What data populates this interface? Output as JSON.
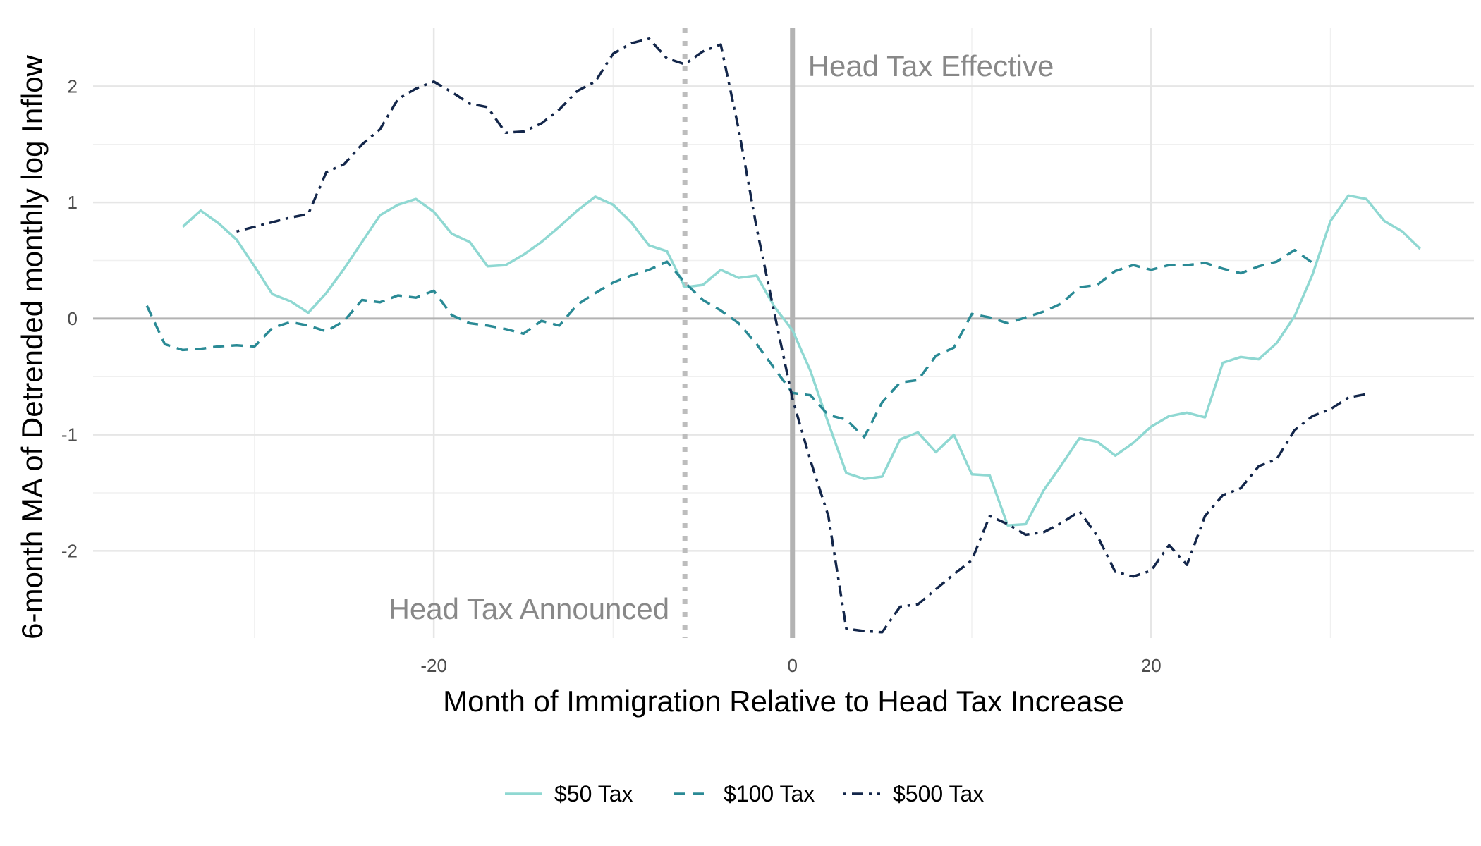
{
  "chart_data": {
    "type": "line",
    "title": "",
    "xlabel": "Month of Immigration Relative to Head Tax Increase",
    "ylabel": "6-month MA of Detrended monthly log Inflow",
    "xlim": [
      -39,
      38
    ],
    "ylim": [
      -2.75,
      2.5
    ],
    "x_ticks": [
      -20,
      0,
      20
    ],
    "x_tick_labels": [
      "-20",
      "0",
      "20"
    ],
    "y_ticks": [
      -2,
      -1,
      0,
      1,
      2
    ],
    "y_tick_labels": [
      "-2",
      "-1",
      "0",
      "1",
      "2"
    ],
    "grid": true,
    "legend_position": "bottom",
    "reference_lines": [
      {
        "x": -6,
        "style": "dotted",
        "label": "Head Tax Announced"
      },
      {
        "x": 0,
        "style": "solid",
        "label": "Head Tax Effective"
      }
    ],
    "hline": {
      "y": 0,
      "style": "solid"
    },
    "series": [
      {
        "name": "$50 Tax",
        "color": "#8fd8d2",
        "dash": "solid",
        "points": [
          [
            -34,
            0.79
          ],
          [
            -33,
            0.93
          ],
          [
            -32,
            0.82
          ],
          [
            -31,
            0.68
          ],
          [
            -30,
            0.45
          ],
          [
            -29,
            0.21
          ],
          [
            -28,
            0.15
          ],
          [
            -27,
            0.05
          ],
          [
            -26,
            0.22
          ],
          [
            -25,
            0.43
          ],
          [
            -24,
            0.66
          ],
          [
            -23,
            0.89
          ],
          [
            -22,
            0.98
          ],
          [
            -21,
            1.03
          ],
          [
            -20,
            0.92
          ],
          [
            -19,
            0.73
          ],
          [
            -18,
            0.66
          ],
          [
            -17,
            0.45
          ],
          [
            -16,
            0.46
          ],
          [
            -15,
            0.55
          ],
          [
            -14,
            0.66
          ],
          [
            -13,
            0.79
          ],
          [
            -12,
            0.93
          ],
          [
            -11,
            1.05
          ],
          [
            -10,
            0.98
          ],
          [
            -9,
            0.83
          ],
          [
            -8,
            0.63
          ],
          [
            -7,
            0.58
          ],
          [
            -6,
            0.27
          ],
          [
            -5,
            0.29
          ],
          [
            -4,
            0.42
          ],
          [
            -3,
            0.35
          ],
          [
            -2,
            0.37
          ],
          [
            -1,
            0.1
          ],
          [
            0,
            -0.1
          ],
          [
            1,
            -0.45
          ],
          [
            2,
            -0.9
          ],
          [
            3,
            -1.33
          ],
          [
            4,
            -1.38
          ],
          [
            5,
            -1.36
          ],
          [
            6,
            -1.04
          ],
          [
            7,
            -0.98
          ],
          [
            8,
            -1.15
          ],
          [
            9,
            -1.0
          ],
          [
            10,
            -1.34
          ],
          [
            11,
            -1.35
          ],
          [
            12,
            -1.78
          ],
          [
            13,
            -1.77
          ],
          [
            14,
            -1.48
          ],
          [
            15,
            -1.26
          ],
          [
            16,
            -1.03
          ],
          [
            17,
            -1.06
          ],
          [
            18,
            -1.18
          ],
          [
            19,
            -1.07
          ],
          [
            20,
            -0.93
          ],
          [
            21,
            -0.84
          ],
          [
            22,
            -0.81
          ],
          [
            23,
            -0.85
          ],
          [
            24,
            -0.38
          ],
          [
            25,
            -0.33
          ],
          [
            26,
            -0.35
          ],
          [
            27,
            -0.21
          ],
          [
            28,
            0.02
          ],
          [
            29,
            0.38
          ],
          [
            30,
            0.84
          ],
          [
            31,
            1.06
          ],
          [
            32,
            1.03
          ],
          [
            33,
            0.84
          ],
          [
            34,
            0.75
          ],
          [
            35,
            0.6
          ]
        ]
      },
      {
        "name": "$100 Tax",
        "color": "#2a8a95",
        "dash": "dashed",
        "points": [
          [
            -36,
            0.11
          ],
          [
            -35,
            -0.22
          ],
          [
            -34,
            -0.27
          ],
          [
            -33,
            -0.26
          ],
          [
            -32,
            -0.24
          ],
          [
            -31,
            -0.23
          ],
          [
            -30,
            -0.24
          ],
          [
            -29,
            -0.08
          ],
          [
            -28,
            -0.03
          ],
          [
            -27,
            -0.06
          ],
          [
            -26,
            -0.11
          ],
          [
            -25,
            -0.02
          ],
          [
            -24,
            0.16
          ],
          [
            -23,
            0.14
          ],
          [
            -22,
            0.2
          ],
          [
            -21,
            0.18
          ],
          [
            -20,
            0.24
          ],
          [
            -19,
            0.03
          ],
          [
            -18,
            -0.04
          ],
          [
            -17,
            -0.06
          ],
          [
            -16,
            -0.09
          ],
          [
            -15,
            -0.13
          ],
          [
            -14,
            -0.02
          ],
          [
            -13,
            -0.06
          ],
          [
            -12,
            0.12
          ],
          [
            -11,
            0.22
          ],
          [
            -10,
            0.31
          ],
          [
            -9,
            0.37
          ],
          [
            -8,
            0.42
          ],
          [
            -7,
            0.49
          ],
          [
            -6,
            0.31
          ],
          [
            -5,
            0.16
          ],
          [
            -4,
            0.07
          ],
          [
            -3,
            -0.04
          ],
          [
            -2,
            -0.22
          ],
          [
            -1,
            -0.43
          ],
          [
            0,
            -0.64
          ],
          [
            1,
            -0.66
          ],
          [
            2,
            -0.83
          ],
          [
            3,
            -0.87
          ],
          [
            4,
            -1.02
          ],
          [
            5,
            -0.72
          ],
          [
            6,
            -0.55
          ],
          [
            7,
            -0.53
          ],
          [
            8,
            -0.32
          ],
          [
            9,
            -0.25
          ],
          [
            10,
            0.04
          ],
          [
            11,
            0.01
          ],
          [
            12,
            -0.04
          ],
          [
            13,
            0.01
          ],
          [
            14,
            0.06
          ],
          [
            15,
            0.13
          ],
          [
            16,
            0.27
          ],
          [
            17,
            0.29
          ],
          [
            18,
            0.41
          ],
          [
            19,
            0.46
          ],
          [
            20,
            0.42
          ],
          [
            21,
            0.46
          ],
          [
            22,
            0.46
          ],
          [
            23,
            0.48
          ],
          [
            24,
            0.43
          ],
          [
            25,
            0.39
          ],
          [
            26,
            0.45
          ],
          [
            27,
            0.49
          ],
          [
            28,
            0.59
          ],
          [
            29,
            0.48
          ]
        ]
      },
      {
        "name": "$500 Tax",
        "color": "#13264a",
        "dash": "dashdot",
        "points": [
          [
            -31,
            0.75
          ],
          [
            -30,
            0.79
          ],
          [
            -29,
            0.83
          ],
          [
            -28,
            0.87
          ],
          [
            -27,
            0.9
          ],
          [
            -26,
            1.26
          ],
          [
            -25,
            1.33
          ],
          [
            -24,
            1.5
          ],
          [
            -23,
            1.63
          ],
          [
            -22,
            1.89
          ],
          [
            -21,
            1.98
          ],
          [
            -20,
            2.04
          ],
          [
            -19,
            1.95
          ],
          [
            -18,
            1.85
          ],
          [
            -17,
            1.82
          ],
          [
            -16,
            1.6
          ],
          [
            -15,
            1.61
          ],
          [
            -14,
            1.68
          ],
          [
            -13,
            1.8
          ],
          [
            -12,
            1.96
          ],
          [
            -11,
            2.04
          ],
          [
            -10,
            2.28
          ],
          [
            -9,
            2.37
          ],
          [
            -8,
            2.41
          ],
          [
            -7,
            2.24
          ],
          [
            -6,
            2.19
          ],
          [
            -5,
            2.3
          ],
          [
            -4,
            2.36
          ],
          [
            -3,
            1.63
          ],
          [
            -2,
            0.78
          ],
          [
            -1,
            0.04
          ],
          [
            0,
            -0.69
          ],
          [
            1,
            -1.22
          ],
          [
            2,
            -1.7
          ],
          [
            3,
            -2.67
          ],
          [
            4,
            -2.69
          ],
          [
            5,
            -2.7
          ],
          [
            6,
            -2.48
          ],
          [
            7,
            -2.46
          ],
          [
            8,
            -2.33
          ],
          [
            9,
            -2.2
          ],
          [
            10,
            -2.08
          ],
          [
            11,
            -1.7
          ],
          [
            12,
            -1.77
          ],
          [
            13,
            -1.86
          ],
          [
            14,
            -1.84
          ],
          [
            15,
            -1.76
          ],
          [
            16,
            -1.66
          ],
          [
            17,
            -1.87
          ],
          [
            18,
            -2.18
          ],
          [
            19,
            -2.22
          ],
          [
            20,
            -2.17
          ],
          [
            21,
            -1.95
          ],
          [
            22,
            -2.12
          ],
          [
            23,
            -1.7
          ],
          [
            24,
            -1.52
          ],
          [
            25,
            -1.46
          ],
          [
            26,
            -1.27
          ],
          [
            27,
            -1.21
          ],
          [
            28,
            -0.96
          ],
          [
            29,
            -0.84
          ],
          [
            30,
            -0.78
          ],
          [
            31,
            -0.68
          ],
          [
            32,
            -0.65
          ]
        ]
      }
    ]
  }
}
